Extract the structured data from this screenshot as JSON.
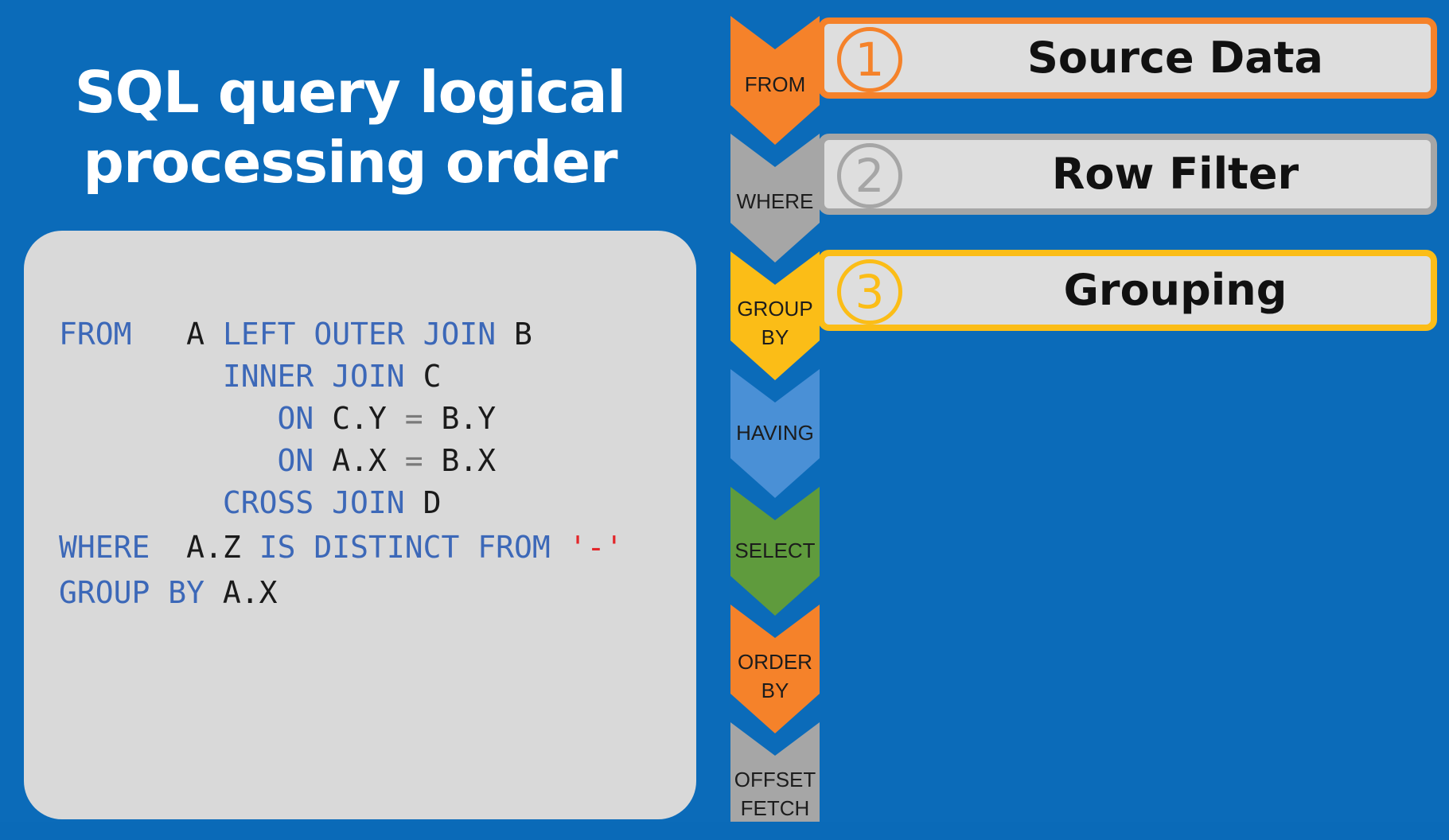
{
  "slide": {
    "title_line1": "SQL query logical",
    "title_line2": "processing order"
  },
  "code": {
    "line1": {
      "kw1": "FROM",
      "id1": "A",
      "kw2": "LEFT OUTER JOIN",
      "id2": "B"
    },
    "line2": {
      "kw1": "INNER JOIN",
      "id1": "C"
    },
    "line3": {
      "kw1": "ON",
      "id1": "C.Y",
      "op": "=",
      "id2": "B.Y"
    },
    "line4": {
      "kw1": "ON",
      "id1": "A.X",
      "op": "=",
      "id2": "B.X"
    },
    "line5": {
      "kw1": "CROSS JOIN",
      "id1": "D"
    },
    "line6": {
      "kw1": "WHERE",
      "id1": "A.Z",
      "kw2": "IS DISTINCT FROM",
      "str": "'-'"
    },
    "line7": {
      "kw1": "GROUP BY",
      "id1": "A.X"
    }
  },
  "chevrons": [
    {
      "label_line1": "FROM",
      "label_line2": "",
      "color": "#f5822a"
    },
    {
      "label_line1": "WHERE",
      "label_line2": "",
      "color": "#a6a6a6"
    },
    {
      "label_line1": "GROUP",
      "label_line2": "BY",
      "color": "#fbbd17"
    },
    {
      "label_line1": "HAVING",
      "label_line2": "",
      "color": "#4a90d6"
    },
    {
      "label_line1": "SELECT",
      "label_line2": "",
      "color": "#5f9b3d"
    },
    {
      "label_line1": "ORDER",
      "label_line2": "BY",
      "color": "#f5822a"
    },
    {
      "label_line1": "OFFSET",
      "label_line2": "FETCH",
      "color": "#a6a6a6"
    }
  ],
  "steps": [
    {
      "number": "1",
      "label": "Source Data",
      "border_color": "#f5822a"
    },
    {
      "number": "2",
      "label": "Row Filter",
      "border_color": "#a6a6a6"
    },
    {
      "number": "3",
      "label": "Grouping",
      "border_color": "#fbbd17"
    }
  ]
}
